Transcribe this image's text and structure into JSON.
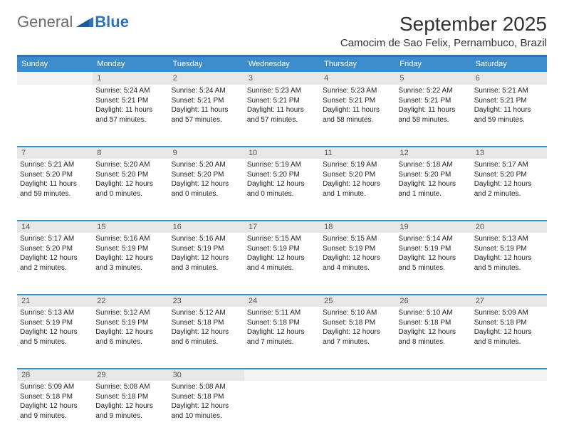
{
  "logo": {
    "text_gray": "General",
    "text_blue": "Blue"
  },
  "title": "September 2025",
  "location": "Camocim de Sao Felix, Pernambuco, Brazil",
  "colors": {
    "header_bar": "#3c8ccc",
    "top_border": "#2f72b9",
    "daynum_bg": "#e7e7e7",
    "text": "#222222",
    "logo_gray": "#6b6b6b",
    "logo_blue": "#2f72b9"
  },
  "day_headers": [
    "Sunday",
    "Monday",
    "Tuesday",
    "Wednesday",
    "Thursday",
    "Friday",
    "Saturday"
  ],
  "weeks": [
    [
      {
        "n": "",
        "sr": "",
        "ss": "",
        "dl": ""
      },
      {
        "n": "1",
        "sr": "5:24 AM",
        "ss": "5:21 PM",
        "dl": "11 hours and 57 minutes."
      },
      {
        "n": "2",
        "sr": "5:24 AM",
        "ss": "5:21 PM",
        "dl": "11 hours and 57 minutes."
      },
      {
        "n": "3",
        "sr": "5:23 AM",
        "ss": "5:21 PM",
        "dl": "11 hours and 57 minutes."
      },
      {
        "n": "4",
        "sr": "5:23 AM",
        "ss": "5:21 PM",
        "dl": "11 hours and 58 minutes."
      },
      {
        "n": "5",
        "sr": "5:22 AM",
        "ss": "5:21 PM",
        "dl": "11 hours and 58 minutes."
      },
      {
        "n": "6",
        "sr": "5:21 AM",
        "ss": "5:21 PM",
        "dl": "11 hours and 59 minutes."
      }
    ],
    [
      {
        "n": "7",
        "sr": "5:21 AM",
        "ss": "5:20 PM",
        "dl": "11 hours and 59 minutes."
      },
      {
        "n": "8",
        "sr": "5:20 AM",
        "ss": "5:20 PM",
        "dl": "12 hours and 0 minutes."
      },
      {
        "n": "9",
        "sr": "5:20 AM",
        "ss": "5:20 PM",
        "dl": "12 hours and 0 minutes."
      },
      {
        "n": "10",
        "sr": "5:19 AM",
        "ss": "5:20 PM",
        "dl": "12 hours and 0 minutes."
      },
      {
        "n": "11",
        "sr": "5:19 AM",
        "ss": "5:20 PM",
        "dl": "12 hours and 1 minute."
      },
      {
        "n": "12",
        "sr": "5:18 AM",
        "ss": "5:20 PM",
        "dl": "12 hours and 1 minute."
      },
      {
        "n": "13",
        "sr": "5:17 AM",
        "ss": "5:20 PM",
        "dl": "12 hours and 2 minutes."
      }
    ],
    [
      {
        "n": "14",
        "sr": "5:17 AM",
        "ss": "5:20 PM",
        "dl": "12 hours and 2 minutes."
      },
      {
        "n": "15",
        "sr": "5:16 AM",
        "ss": "5:19 PM",
        "dl": "12 hours and 3 minutes."
      },
      {
        "n": "16",
        "sr": "5:16 AM",
        "ss": "5:19 PM",
        "dl": "12 hours and 3 minutes."
      },
      {
        "n": "17",
        "sr": "5:15 AM",
        "ss": "5:19 PM",
        "dl": "12 hours and 4 minutes."
      },
      {
        "n": "18",
        "sr": "5:15 AM",
        "ss": "5:19 PM",
        "dl": "12 hours and 4 minutes."
      },
      {
        "n": "19",
        "sr": "5:14 AM",
        "ss": "5:19 PM",
        "dl": "12 hours and 5 minutes."
      },
      {
        "n": "20",
        "sr": "5:13 AM",
        "ss": "5:19 PM",
        "dl": "12 hours and 5 minutes."
      }
    ],
    [
      {
        "n": "21",
        "sr": "5:13 AM",
        "ss": "5:19 PM",
        "dl": "12 hours and 5 minutes."
      },
      {
        "n": "22",
        "sr": "5:12 AM",
        "ss": "5:19 PM",
        "dl": "12 hours and 6 minutes."
      },
      {
        "n": "23",
        "sr": "5:12 AM",
        "ss": "5:18 PM",
        "dl": "12 hours and 6 minutes."
      },
      {
        "n": "24",
        "sr": "5:11 AM",
        "ss": "5:18 PM",
        "dl": "12 hours and 7 minutes."
      },
      {
        "n": "25",
        "sr": "5:10 AM",
        "ss": "5:18 PM",
        "dl": "12 hours and 7 minutes."
      },
      {
        "n": "26",
        "sr": "5:10 AM",
        "ss": "5:18 PM",
        "dl": "12 hours and 8 minutes."
      },
      {
        "n": "27",
        "sr": "5:09 AM",
        "ss": "5:18 PM",
        "dl": "12 hours and 8 minutes."
      }
    ],
    [
      {
        "n": "28",
        "sr": "5:09 AM",
        "ss": "5:18 PM",
        "dl": "12 hours and 9 minutes."
      },
      {
        "n": "29",
        "sr": "5:08 AM",
        "ss": "5:18 PM",
        "dl": "12 hours and 9 minutes."
      },
      {
        "n": "30",
        "sr": "5:08 AM",
        "ss": "5:18 PM",
        "dl": "12 hours and 10 minutes."
      },
      {
        "n": "",
        "sr": "",
        "ss": "",
        "dl": ""
      },
      {
        "n": "",
        "sr": "",
        "ss": "",
        "dl": ""
      },
      {
        "n": "",
        "sr": "",
        "ss": "",
        "dl": ""
      },
      {
        "n": "",
        "sr": "",
        "ss": "",
        "dl": ""
      }
    ]
  ]
}
